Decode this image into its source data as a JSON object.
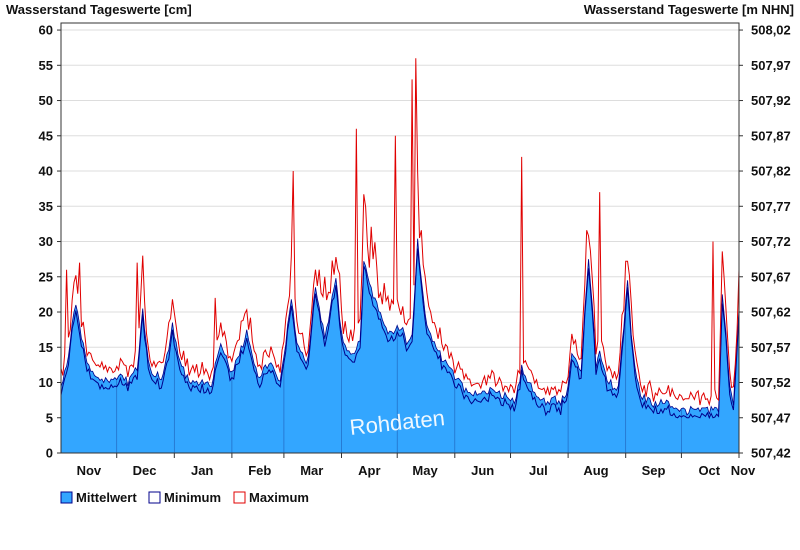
{
  "chart_data": {
    "type": "area",
    "left_axis_title": "Wasserstand Tageswerte [cm]",
    "right_axis_title": "Wasserstand Tageswerte [m NHN]",
    "y_range": [
      0,
      61
    ],
    "y_ticks": [
      "0",
      "5",
      "10",
      "15",
      "20",
      "25",
      "30",
      "35",
      "40",
      "45",
      "50",
      "55",
      "60"
    ],
    "y2_range": [
      507.42,
      508.03
    ],
    "y2_ticks": [
      "507,42",
      "507,47",
      "507,52",
      "507,57",
      "507,62",
      "507,67",
      "507,72",
      "507,77",
      "507,82",
      "507,87",
      "507,92",
      "507,97",
      "508,02"
    ],
    "months": [
      "Nov",
      "Dec",
      "Jan",
      "Feb",
      "Mar",
      "Apr",
      "May",
      "Jun",
      "Jul",
      "Aug",
      "Sep",
      "Oct",
      "Nov"
    ],
    "grid": true,
    "watermark": "Rohdaten",
    "colors": {
      "mean": "#33a6ff",
      "min": "#00008b",
      "max": "#e00000",
      "grid": "#dddddd"
    },
    "legend": {
      "position": "bottom-left",
      "items": [
        "Mittelwert",
        "Minimum",
        "Maximum"
      ]
    },
    "series": [
      {
        "name": "Mittelwert",
        "role": "mean",
        "values": []
      },
      {
        "name": "Minimum",
        "role": "min",
        "values": []
      },
      {
        "name": "Maximum",
        "role": "max",
        "values": []
      }
    ],
    "profile_days": [
      0,
      3,
      6,
      8,
      11,
      14,
      16,
      20,
      25,
      30,
      32,
      36,
      41,
      44,
      46,
      48,
      51,
      55,
      60,
      64,
      67,
      70,
      73,
      76,
      78,
      81,
      86,
      92,
      100,
      106,
      110,
      113,
      118,
      124,
      127,
      129,
      133,
      137,
      142,
      148,
      150,
      152,
      154,
      158,
      161,
      163,
      166,
      170,
      174,
      178,
      183,
      186,
      189,
      192,
      195,
      198,
      202,
      206,
      210,
      212,
      217,
      225,
      232,
      240,
      244,
      246,
      248,
      254,
      258,
      262,
      266,
      268,
      272,
      275,
      280,
      284,
      287,
      288,
      290,
      295,
      300,
      305,
      308,
      310,
      313,
      319,
      323,
      327,
      332,
      338,
      345,
      352,
      354,
      356,
      360,
      362,
      365
    ],
    "profile_values": [
      10,
      12,
      18,
      21,
      16,
      13,
      12,
      11,
      10,
      11,
      11,
      10,
      12,
      20,
      15,
      12,
      11,
      11,
      18,
      13,
      11,
      10,
      10,
      10,
      10,
      10,
      16,
      11,
      17,
      11,
      12,
      13,
      10,
      22,
      15,
      14,
      13,
      24,
      16,
      25,
      19,
      16,
      14,
      14,
      16,
      27,
      24,
      21,
      18,
      17,
      18,
      16,
      17,
      30,
      22,
      17,
      15,
      13,
      12,
      11,
      9,
      8,
      9,
      8,
      7,
      9,
      12,
      9,
      8,
      7,
      8,
      7,
      8,
      14,
      12,
      28,
      18,
      12,
      14,
      10,
      9,
      24,
      14,
      10,
      8,
      7,
      7,
      7,
      6,
      6,
      6,
      6,
      6,
      23,
      10,
      7,
      20
    ]
  }
}
